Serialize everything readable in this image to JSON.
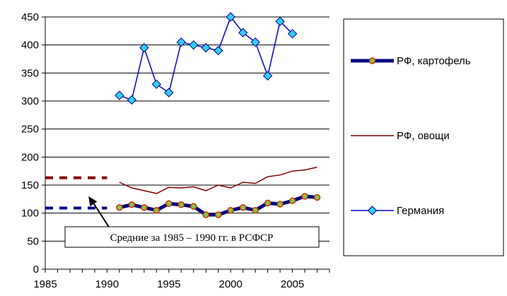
{
  "chart_data": {
    "type": "line",
    "title": "",
    "xlabel": "",
    "ylabel": "",
    "xlim": [
      1985,
      2008
    ],
    "ylim": [
      0,
      450
    ],
    "x_ticks": [
      1985,
      1990,
      1995,
      2000,
      2005
    ],
    "y_ticks": [
      0,
      50,
      100,
      150,
      200,
      250,
      300,
      350,
      400,
      450
    ],
    "grid": "horizontal",
    "legend_position": "right",
    "series": [
      {
        "name": "РФ, картофель",
        "color": "#000080",
        "marker_color": "#8bc34a",
        "x": [
          1991,
          1992,
          1993,
          1994,
          1995,
          1996,
          1997,
          1998,
          1999,
          2000,
          2001,
          2002,
          2003,
          2004,
          2005,
          2006,
          2007
        ],
        "y": [
          110,
          115,
          110,
          105,
          117,
          115,
          112,
          97,
          97,
          105,
          110,
          105,
          118,
          116,
          122,
          130,
          128
        ]
      },
      {
        "name": "РФ, овощи",
        "color": "#800000",
        "x": [
          1991,
          1992,
          1993,
          1994,
          1995,
          1996,
          1997,
          1998,
          1999,
          2000,
          2001,
          2002,
          2003,
          2004,
          2005,
          2006,
          2007
        ],
        "y": [
          155,
          145,
          140,
          135,
          146,
          145,
          147,
          140,
          150,
          145,
          155,
          153,
          165,
          168,
          175,
          177,
          182
        ]
      },
      {
        "name": "Германия",
        "color": "#0000cc",
        "marker_color": "#33ccff",
        "x": [
          1991,
          1992,
          1993,
          1994,
          1995,
          1996,
          1997,
          1998,
          1999,
          2000,
          2001,
          2002,
          2003,
          2004,
          2005
        ],
        "y": [
          310,
          302,
          395,
          330,
          315,
          405,
          400,
          395,
          390,
          450,
          422,
          405,
          345,
          442,
          420
        ]
      }
    ],
    "reference_lines": [
      {
        "color": "#800000",
        "x_range": [
          1985,
          1990
        ],
        "y": 163
      },
      {
        "color": "#000080",
        "x_range": [
          1985,
          1990
        ],
        "y": 109
      }
    ],
    "annotation": {
      "text": "Средние  за 1985 – 1990 гг. в РСФСР",
      "arrow_to": [
        1988.5,
        130
      ]
    }
  }
}
